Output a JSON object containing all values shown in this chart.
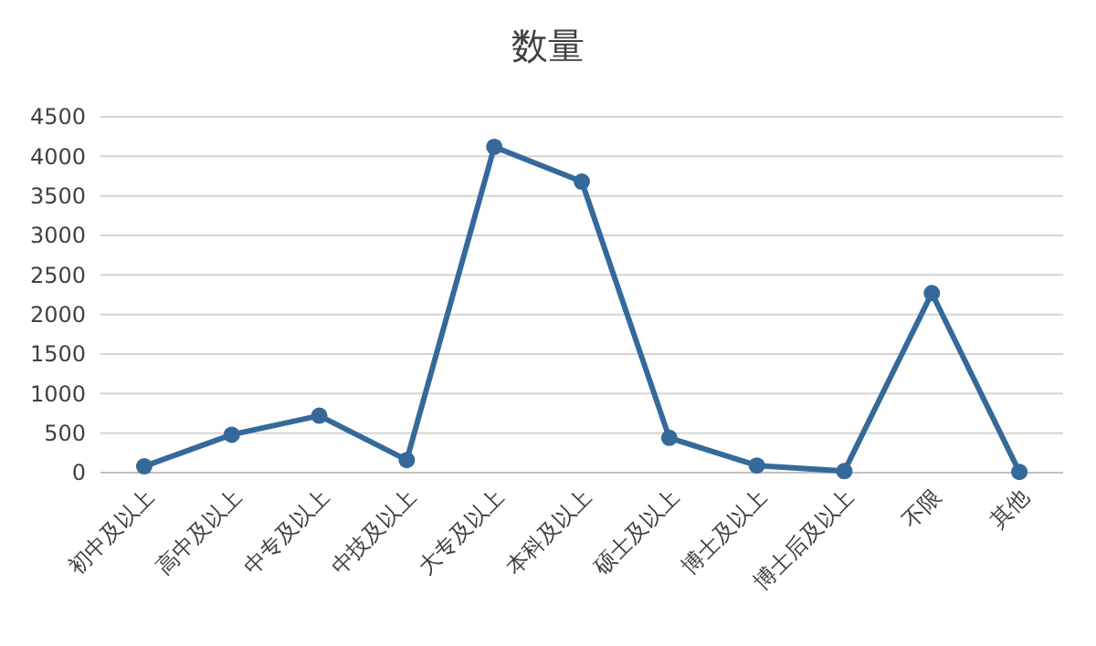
{
  "chart_data": {
    "type": "line",
    "title": "数量",
    "categories": [
      "初中及以上",
      "高中及以上",
      "中专及以上",
      "中技及以上",
      "大专及以上",
      "本科及以上",
      "硕士及以上",
      "博士及以上",
      "博士后及以上",
      "不限",
      "其他"
    ],
    "series": [
      {
        "color": "#35699a",
        "values": [
          80,
          480,
          720,
          160,
          4120,
          3680,
          440,
          90,
          20,
          2270,
          10
        ]
      }
    ],
    "ylim": [
      0,
      4500
    ],
    "yticks": [
      0,
      500,
      1000,
      1500,
      2000,
      2500,
      3000,
      3500,
      4000,
      4500
    ],
    "grid": "y",
    "marker": "circle",
    "line_style": "solid"
  }
}
